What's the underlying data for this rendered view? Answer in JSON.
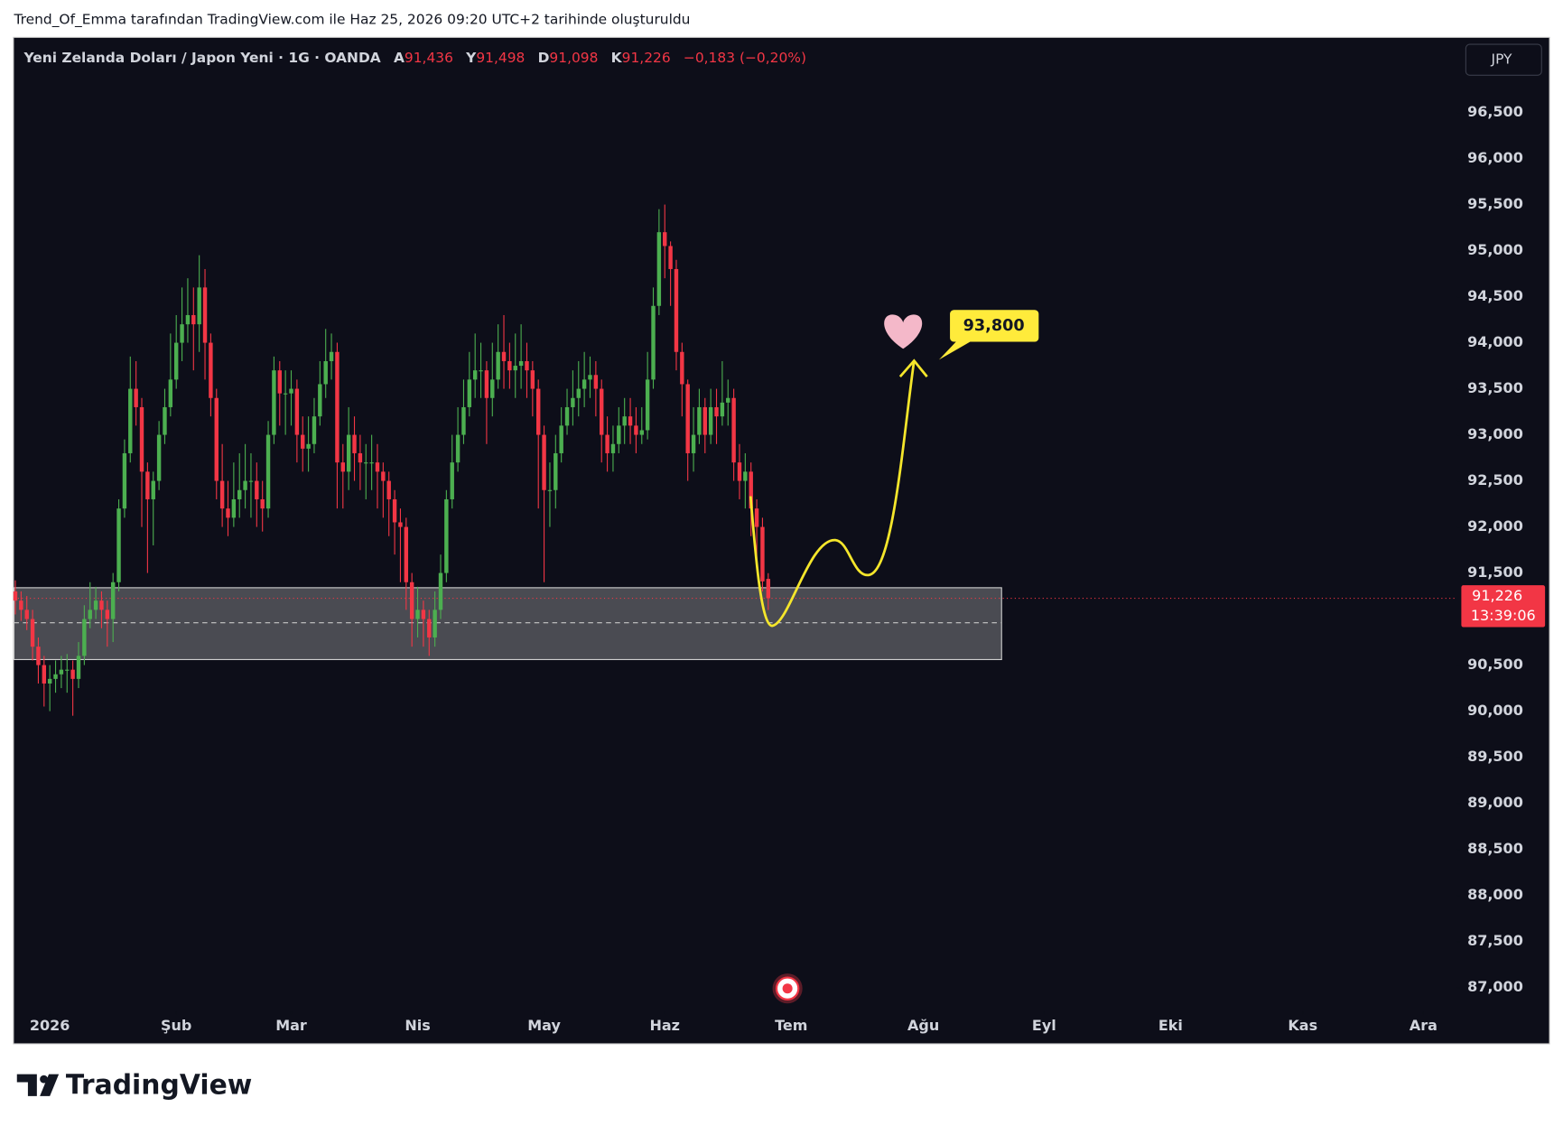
{
  "page_header": "Trend_Of_Emma tarafından TradingView.com ile Haz 25, 2026 09:20 UTC+2 tarihinde oluşturuldu",
  "brand": "TradingView",
  "chart_data": {
    "type": "candlestick",
    "symbol": "Yeni Zelanda Doları / Japon Yeni · 1G · OANDA",
    "ohlc_header": [
      {
        "key": "A",
        "text": "91,436"
      },
      {
        "key": "Y",
        "text": "91,498"
      },
      {
        "key": "D",
        "text": "91,098"
      },
      {
        "key": "K",
        "text": "91,226"
      }
    ],
    "change": "−0,183 (−0,20%)",
    "currency": "JPY",
    "up_color": "#4caf50",
    "down_color": "#f23645",
    "x": [
      -6,
      -5,
      -4,
      -3,
      -2,
      -1,
      0,
      1,
      2,
      3,
      4,
      5,
      6,
      7,
      8,
      9,
      10,
      11,
      12,
      13,
      14,
      15,
      16,
      17,
      18,
      19,
      20,
      21,
      22,
      23,
      24,
      25,
      26,
      27,
      28,
      29,
      30,
      31,
      32,
      33,
      34,
      35,
      36,
      37,
      38,
      39,
      40,
      41,
      42,
      43,
      44,
      45,
      46,
      47,
      48,
      49,
      50,
      51,
      52,
      53,
      54,
      55,
      56,
      57,
      58,
      59,
      60,
      61,
      62,
      63,
      64,
      65,
      66,
      67,
      68,
      69,
      70,
      71,
      72,
      73,
      74,
      75,
      76,
      77,
      78,
      79,
      80,
      81,
      82,
      83,
      84,
      85,
      86,
      87,
      88,
      89,
      90,
      91,
      92,
      93,
      94,
      95,
      96,
      97,
      98,
      99,
      100,
      101,
      102,
      103,
      104,
      105,
      106,
      107,
      108,
      109,
      110,
      111,
      112,
      113,
      114,
      115,
      116,
      117,
      118,
      119,
      120,
      121,
      122,
      123,
      124,
      125
    ],
    "open": [
      91.3,
      91.2,
      91.1,
      91.0,
      90.7,
      90.5,
      90.3,
      90.35,
      90.4,
      90.45,
      90.45,
      90.35,
      90.6,
      91.0,
      91.1,
      91.2,
      91.1,
      91.0,
      91.4,
      92.2,
      92.8,
      93.5,
      93.3,
      92.6,
      92.3,
      92.5,
      93.0,
      93.3,
      93.6,
      94.0,
      94.2,
      94.3,
      94.2,
      94.6,
      94.0,
      93.4,
      92.5,
      92.2,
      92.1,
      92.3,
      92.4,
      92.5,
      92.5,
      92.3,
      92.2,
      93.0,
      93.7,
      93.45,
      93.45,
      93.5,
      93.0,
      92.85,
      92.9,
      93.2,
      93.55,
      93.8,
      93.9,
      92.7,
      92.6,
      93.0,
      92.8,
      92.7,
      92.7,
      92.7,
      92.6,
      92.5,
      92.3,
      92.05,
      92.0,
      91.4,
      91.0,
      91.1,
      91.0,
      90.8,
      91.1,
      91.5,
      92.3,
      92.7,
      93.0,
      93.3,
      93.6,
      93.7,
      93.7,
      93.4,
      93.6,
      93.9,
      93.8,
      93.7,
      93.75,
      93.8,
      93.7,
      93.5,
      93.0,
      92.4,
      92.4,
      92.8,
      93.1,
      93.3,
      93.4,
      93.5,
      93.6,
      93.65,
      93.5,
      93.0,
      92.8,
      92.9,
      93.1,
      93.2,
      93.1,
      93.0,
      93.05,
      93.6,
      94.4,
      95.2,
      95.05,
      94.8,
      93.9,
      93.55,
      92.8,
      93.0,
      93.3,
      93.0,
      93.3,
      93.2,
      93.35,
      93.4,
      92.7,
      92.5,
      92.6,
      92.2,
      92.0,
      91.436
    ],
    "high": [
      91.42,
      91.3,
      91.25,
      91.1,
      90.8,
      90.6,
      90.5,
      90.55,
      90.6,
      90.62,
      90.55,
      90.75,
      91.15,
      91.4,
      91.35,
      91.3,
      91.2,
      91.5,
      92.3,
      92.95,
      93.85,
      93.8,
      93.4,
      92.7,
      92.6,
      93.15,
      93.5,
      94.1,
      94.3,
      94.6,
      94.7,
      94.6,
      94.95,
      94.8,
      94.1,
      93.5,
      92.9,
      92.5,
      92.7,
      92.8,
      92.9,
      92.8,
      92.7,
      92.5,
      93.15,
      93.85,
      93.8,
      93.7,
      93.7,
      93.6,
      93.2,
      93.2,
      93.4,
      93.8,
      94.15,
      94.1,
      94.0,
      92.9,
      93.3,
      93.2,
      93.0,
      92.9,
      93.0,
      92.9,
      92.7,
      92.6,
      92.4,
      92.2,
      92.1,
      91.5,
      91.35,
      91.2,
      91.1,
      91.3,
      91.7,
      92.4,
      93.0,
      93.3,
      93.6,
      93.9,
      94.1,
      94.0,
      93.8,
      94.0,
      94.2,
      94.3,
      94.0,
      94.1,
      94.2,
      94.0,
      93.8,
      93.6,
      93.1,
      92.7,
      93.0,
      93.3,
      93.5,
      93.7,
      93.8,
      93.9,
      93.85,
      93.8,
      93.6,
      93.2,
      93.1,
      93.3,
      93.4,
      93.4,
      93.3,
      93.3,
      93.9,
      94.6,
      95.45,
      95.5,
      95.1,
      94.9,
      94.0,
      93.6,
      93.3,
      93.5,
      93.4,
      93.5,
      93.5,
      93.8,
      93.6,
      93.5,
      92.9,
      92.8,
      92.7,
      92.3,
      92.1,
      91.498
    ],
    "low": [
      91.05,
      90.98,
      90.88,
      90.55,
      90.3,
      90.05,
      90.0,
      90.2,
      90.25,
      90.2,
      89.95,
      90.25,
      90.5,
      90.9,
      91.0,
      90.9,
      90.7,
      90.75,
      91.3,
      92.1,
      92.7,
      93.1,
      92.0,
      91.5,
      91.8,
      92.4,
      92.9,
      93.2,
      93.5,
      93.8,
      94.0,
      93.7,
      93.9,
      93.6,
      93.2,
      92.3,
      92.0,
      91.9,
      92.0,
      92.1,
      92.2,
      92.1,
      92.0,
      91.95,
      92.1,
      92.9,
      93.1,
      93.0,
      93.1,
      92.7,
      92.6,
      92.6,
      92.8,
      93.1,
      93.4,
      93.6,
      92.2,
      92.2,
      92.4,
      92.5,
      92.4,
      92.3,
      92.4,
      92.2,
      92.1,
      91.9,
      91.7,
      91.4,
      91.1,
      90.7,
      90.8,
      90.7,
      90.6,
      90.7,
      91.0,
      91.4,
      92.2,
      92.6,
      92.9,
      93.2,
      93.4,
      93.4,
      92.9,
      93.2,
      93.5,
      93.5,
      93.5,
      93.4,
      93.5,
      93.4,
      93.2,
      92.2,
      91.4,
      92.0,
      92.2,
      92.7,
      93.0,
      93.1,
      93.2,
      93.3,
      93.4,
      93.2,
      92.7,
      92.6,
      92.6,
      92.8,
      92.9,
      92.9,
      92.8,
      92.9,
      92.95,
      93.5,
      94.3,
      94.7,
      94.4,
      93.7,
      93.2,
      92.5,
      92.6,
      92.9,
      92.8,
      92.9,
      92.9,
      93.1,
      93.1,
      92.5,
      92.3,
      92.2,
      91.9,
      91.6,
      91.3,
      91.098
    ],
    "close": [
      91.2,
      91.1,
      91.0,
      90.7,
      90.5,
      90.3,
      90.35,
      90.4,
      90.45,
      90.45,
      90.35,
      90.6,
      91.0,
      91.1,
      91.2,
      91.1,
      91.0,
      91.4,
      92.2,
      92.8,
      93.5,
      93.3,
      92.6,
      92.3,
      92.5,
      93.0,
      93.3,
      93.6,
      94.0,
      94.2,
      94.3,
      94.2,
      94.6,
      94.0,
      93.4,
      92.5,
      92.2,
      92.1,
      92.3,
      92.4,
      92.5,
      92.5,
      92.3,
      92.2,
      93.0,
      93.7,
      93.45,
      93.45,
      93.5,
      93.0,
      92.85,
      92.9,
      93.2,
      93.55,
      93.8,
      93.9,
      92.7,
      92.6,
      93.0,
      92.8,
      92.7,
      92.7,
      92.7,
      92.6,
      92.5,
      92.3,
      92.05,
      92.0,
      91.4,
      91.0,
      91.1,
      91.0,
      90.8,
      91.1,
      91.5,
      92.3,
      92.7,
      93.0,
      93.3,
      93.6,
      93.7,
      93.7,
      93.4,
      93.6,
      93.9,
      93.8,
      93.7,
      93.75,
      93.8,
      93.7,
      93.5,
      93.0,
      92.4,
      92.4,
      92.8,
      93.1,
      93.3,
      93.4,
      93.5,
      93.6,
      93.65,
      93.5,
      93.0,
      92.8,
      92.9,
      93.1,
      93.2,
      93.1,
      93.0,
      93.05,
      93.6,
      94.4,
      95.2,
      95.05,
      94.8,
      93.9,
      93.55,
      92.8,
      93.0,
      93.3,
      93.0,
      93.3,
      93.2,
      93.35,
      93.4,
      92.7,
      92.5,
      92.6,
      92.2,
      92.0,
      91.409,
      91.226
    ],
    "xlim": [
      -6.24,
      244.9
    ],
    "xticks": [
      {
        "value": 0,
        "label": "2026"
      },
      {
        "value": 22,
        "label": "Şub"
      },
      {
        "value": 42,
        "label": "Mar"
      },
      {
        "value": 64,
        "label": "Nis"
      },
      {
        "value": 86,
        "label": "May"
      },
      {
        "value": 107,
        "label": "Haz"
      },
      {
        "value": 129,
        "label": "Tem"
      },
      {
        "value": 152,
        "label": "Ağu"
      },
      {
        "value": 173,
        "label": "Eyl"
      },
      {
        "value": 195,
        "label": "Eki"
      },
      {
        "value": 218,
        "label": "Kas"
      },
      {
        "value": 239,
        "label": "Ara"
      }
    ],
    "ylim": [
      86.74,
      97.31
    ],
    "yticks": [
      {
        "value": 87,
        "label": "87,000"
      },
      {
        "value": 87.5,
        "label": "87,500"
      },
      {
        "value": 88,
        "label": "88,000"
      },
      {
        "value": 88.5,
        "label": "88,500"
      },
      {
        "value": 89,
        "label": "89,000"
      },
      {
        "value": 89.5,
        "label": "89,500"
      },
      {
        "value": 90,
        "label": "90,000"
      },
      {
        "value": 90.5,
        "label": "90,500"
      },
      {
        "value": 91.5,
        "label": "91,500"
      },
      {
        "value": 92,
        "label": "92,000"
      },
      {
        "value": 92.5,
        "label": "92,500"
      },
      {
        "value": 93,
        "label": "93,000"
      },
      {
        "value": 93.5,
        "label": "93,500"
      },
      {
        "value": 94,
        "label": "94,000"
      },
      {
        "value": 94.5,
        "label": "94,500"
      },
      {
        "value": 95,
        "label": "95,000"
      },
      {
        "value": 95.5,
        "label": "95,500"
      },
      {
        "value": 96,
        "label": "96,000"
      },
      {
        "value": 96.5,
        "label": "96,500"
      }
    ],
    "grid": false,
    "current_price": {
      "value": 91.226,
      "label": "91,226"
    },
    "countdown": "13:39:06",
    "zone": {
      "x": [
        -6.24,
        165.6
      ],
      "y": [
        90.56,
        91.34
      ],
      "mid": 90.96
    },
    "target": {
      "value": 93.8,
      "label": "93,800"
    }
  }
}
